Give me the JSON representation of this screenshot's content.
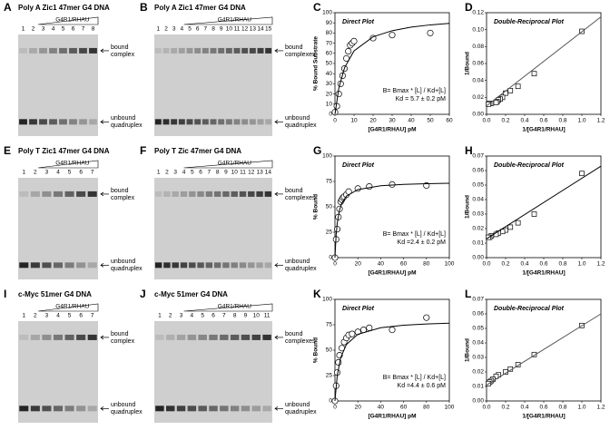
{
  "gels": [
    {
      "label": "A",
      "title": "Poly A Zic1 47mer G4 DNA",
      "protein": "G4R1/RHAU",
      "lanes": [
        "1",
        "2",
        "3",
        "4",
        "5",
        "6",
        "7",
        "8"
      ],
      "bound": [
        "bound",
        "complex"
      ],
      "unbound": [
        "unbound",
        "quadruplex"
      ]
    },
    {
      "label": "B",
      "title": "Poly A Zic1 47mer G4 DNA",
      "protein": "G4R1/RHAU",
      "lanes": [
        "1",
        "2",
        "3",
        "4",
        "5",
        "6",
        "7",
        "8",
        "9",
        "10",
        "11",
        "12",
        "13",
        "14",
        "15"
      ],
      "bound": [
        "bound",
        "complexes"
      ],
      "unbound": [
        "unbound",
        "quadruplex"
      ]
    },
    {
      "label": "E",
      "title": "Poly T Zic1 47mer G4 DNA",
      "protein": "G4R1/RHAU",
      "lanes": [
        "1",
        "2",
        "3",
        "4",
        "5",
        "6",
        "7"
      ],
      "bound": [
        "bound",
        "complex"
      ],
      "unbound": [
        "unbound",
        "quadruplex"
      ]
    },
    {
      "label": "F",
      "title": "Poly T Zic 47mer G4 DNA",
      "protein": "G4R1/RHAU",
      "lanes": [
        "1",
        "2",
        "3",
        "4",
        "5",
        "6",
        "7",
        "8",
        "9",
        "10",
        "11",
        "12",
        "13",
        "14"
      ],
      "bound": [
        "bound",
        "complexes"
      ],
      "unbound": [
        "unbound",
        "quadruplex"
      ]
    },
    {
      "label": "I",
      "title": "c-Myc 51mer G4 DNA",
      "protein": "G4R1/RHAU",
      "lanes": [
        "1",
        "2",
        "3",
        "4",
        "5",
        "6",
        "7"
      ],
      "bound": [
        "bound",
        "complex"
      ],
      "unbound": [
        "unbound",
        "quadruplex"
      ]
    },
    {
      "label": "J",
      "title": "c-Myc 51mer G4 DNA",
      "protein": "G4R1/RHAU",
      "lanes": [
        "1",
        "2",
        "3",
        "4",
        "5",
        "6",
        "7",
        "8",
        "9",
        "10",
        "11"
      ],
      "bound": [
        "bound",
        "complexes"
      ],
      "unbound": [
        "unbound",
        "quadruplex"
      ]
    }
  ],
  "chart_data": [
    {
      "type": "scatter",
      "panel_label": "C",
      "plot_title": "Direct Plot",
      "equation": "B= Bmax * [L] / Kd+[L]",
      "kd": "Kd = 5.7 ± 0.2 pM",
      "x_label": "[G4R1/RHAU] pM",
      "y_label": "% Bound Substrate",
      "xlim": [
        0,
        60
      ],
      "xticks": [
        0,
        10,
        20,
        30,
        40,
        50,
        60
      ],
      "ylim": [
        0,
        100
      ],
      "yticks": [
        0,
        10,
        20,
        30,
        40,
        50,
        60,
        70,
        80,
        90,
        100
      ],
      "series": [
        {
          "marker": "circle",
          "color": "#000000",
          "x": [
            0,
            1,
            2,
            3,
            4,
            5,
            6,
            7,
            8,
            9,
            10,
            20,
            30,
            50
          ],
          "values": [
            2,
            8,
            20,
            30,
            38,
            45,
            55,
            62,
            68,
            70,
            72,
            75,
            78,
            80
          ]
        },
        {
          "marker": "none",
          "color": "#000000",
          "x": [
            0,
            2,
            5,
            10,
            20,
            30,
            40,
            50,
            60
          ],
          "values": [
            0,
            25.5,
            45.7,
            62.4,
            76.3,
            82.3,
            85.8,
            88,
            89.5
          ]
        }
      ]
    },
    {
      "type": "scatter",
      "panel_label": "D",
      "plot_title": "Double-Reciprocal Plot",
      "x_label": "1/[G4R1/RHAU]",
      "y_label": "1/Bound",
      "xlim": [
        0,
        1.2
      ],
      "xticks": [
        {
          "value": 0,
          "label": "0.0"
        },
        0.2,
        0.4,
        0.6,
        0.8,
        {
          "value": 1,
          "label": "1.0"
        },
        1.2
      ],
      "ylim": [
        0,
        0.12
      ],
      "yticks": [
        {
          "value": 0,
          "label": "0.00"
        },
        0.02,
        0.04,
        0.06,
        0.08,
        {
          "value": 0.1,
          "label": "0.10"
        },
        0.12
      ],
      "series": [
        {
          "marker": "square",
          "color": "#000000",
          "x": [
            1,
            0.5,
            0.33,
            0.25,
            0.2,
            0.167,
            0.143,
            0.125,
            0.111,
            0.1,
            0.05,
            0.033,
            0.02
          ],
          "values": [
            0.098,
            0.048,
            0.033,
            0.028,
            0.025,
            0.02,
            0.018,
            0.017,
            0.015,
            0.014,
            0.013,
            0.013,
            0.012
          ]
        },
        {
          "marker": "none",
          "color": "#555555",
          "x": [
            0,
            1.2
          ],
          "values": [
            0.01,
            0.115
          ]
        }
      ]
    },
    {
      "type": "scatter",
      "panel_label": "G",
      "plot_title": "Direct Plot",
      "equation": "B= Bmax * [L] / Kd+[L]",
      "kd": "Kd =2.4 ± 0.2 pM",
      "x_label": "[G4R1/RHAU] pM",
      "y_label": "% Bound",
      "xlim": [
        0,
        100
      ],
      "xticks": [
        0,
        20,
        40,
        60,
        80,
        100
      ],
      "ylim": [
        0,
        100
      ],
      "yticks": [
        0,
        25,
        50,
        75,
        100
      ],
      "series": [
        {
          "marker": "circle",
          "color": "#000000",
          "x": [
            0,
            1,
            2,
            3,
            4,
            5,
            6,
            7,
            8,
            10,
            12,
            20,
            30,
            50,
            80
          ],
          "values": [
            0,
            18,
            28,
            40,
            48,
            55,
            57,
            59,
            60,
            62,
            65,
            68,
            70,
            72,
            71
          ]
        },
        {
          "marker": "none",
          "color": "#000000",
          "x": [
            0,
            1,
            2,
            4,
            6,
            10,
            20,
            40,
            60,
            80,
            100
          ],
          "values": [
            0,
            22.1,
            34.1,
            46.9,
            53.6,
            60.5,
            67,
            70.8,
            72.1,
            72.8,
            73.2
          ]
        }
      ]
    },
    {
      "type": "scatter",
      "panel_label": "H",
      "plot_title": "Double-Reciprocal Plot",
      "x_label": "1/[G4R1/RHAU]",
      "y_label": "1/Bound",
      "xlim": [
        0,
        1.2
      ],
      "xticks": [
        {
          "value": 0,
          "label": "0.0"
        },
        0.2,
        0.4,
        0.6,
        0.8,
        {
          "value": 1,
          "label": "1.0"
        },
        1.2
      ],
      "ylim": [
        0,
        0.07
      ],
      "yticks": [
        {
          "value": 0,
          "label": "0.00"
        },
        0.01,
        0.02,
        0.03,
        0.04,
        0.05,
        0.06,
        0.07
      ],
      "series": [
        {
          "marker": "square",
          "color": "#000000",
          "x": [
            1,
            0.5,
            0.33,
            0.25,
            0.2,
            0.167,
            0.125,
            0.1,
            0.05,
            0.033,
            0.02
          ],
          "values": [
            0.058,
            0.03,
            0.024,
            0.021,
            0.019,
            0.018,
            0.017,
            0.016,
            0.015,
            0.014,
            0.014
          ]
        },
        {
          "marker": "none",
          "color": "#000000",
          "x": [
            0,
            1.2
          ],
          "values": [
            0.013,
            0.063
          ]
        }
      ]
    },
    {
      "type": "scatter",
      "panel_label": "K",
      "plot_title": "Direct Plot",
      "equation": "B= Bmax * [L] / Kd+[L]",
      "kd": "Kd =4.4 ± 0.6 pM",
      "x_label": "[G4R1/RHAU] pM",
      "y_label": "% Bound",
      "xlim": [
        0,
        100
      ],
      "xticks": [
        0,
        20,
        40,
        60,
        80,
        100
      ],
      "ylim": [
        0,
        100
      ],
      "yticks": [
        0,
        25,
        50,
        75,
        100
      ],
      "series": [
        {
          "marker": "circle",
          "color": "#000000",
          "x": [
            0,
            1,
            2,
            3,
            4,
            6,
            8,
            10,
            12,
            15,
            20,
            25,
            30,
            50,
            80
          ],
          "values": [
            0,
            15,
            28,
            38,
            45,
            52,
            58,
            62,
            65,
            66,
            68,
            70,
            72,
            70,
            82
          ]
        },
        {
          "marker": "none",
          "color": "#000000",
          "x": [
            0,
            2,
            5,
            10,
            20,
            40,
            60,
            80,
            100
          ],
          "values": [
            0,
            25,
            42.6,
            55.6,
            65.6,
            72.1,
            74.5,
            75.8,
            76.6
          ]
        }
      ]
    },
    {
      "type": "scatter",
      "panel_label": "L",
      "plot_title": "Double-Reciprocal Plot",
      "x_label": "1/[G4R1/RHAU]",
      "y_label": "1/Bound",
      "xlim": [
        0,
        1.2
      ],
      "xticks": [
        {
          "value": 0,
          "label": "0.0"
        },
        0.2,
        0.4,
        0.6,
        0.8,
        {
          "value": 1,
          "label": "1.0"
        },
        1.2
      ],
      "ylim": [
        0,
        0.07
      ],
      "yticks": [
        {
          "value": 0,
          "label": "0.00"
        },
        0.01,
        0.02,
        0.03,
        0.04,
        0.05,
        0.06,
        0.07
      ],
      "series": [
        {
          "marker": "square",
          "color": "#000000",
          "x": [
            1,
            0.5,
            0.33,
            0.25,
            0.2,
            0.125,
            0.1,
            0.067,
            0.05,
            0.033,
            0.02
          ],
          "values": [
            0.052,
            0.032,
            0.025,
            0.022,
            0.02,
            0.018,
            0.017,
            0.015,
            0.014,
            0.013,
            0.012
          ]
        },
        {
          "marker": "none",
          "color": "#555555",
          "x": [
            0,
            1.2
          ],
          "values": [
            0.011,
            0.06
          ]
        }
      ]
    }
  ]
}
